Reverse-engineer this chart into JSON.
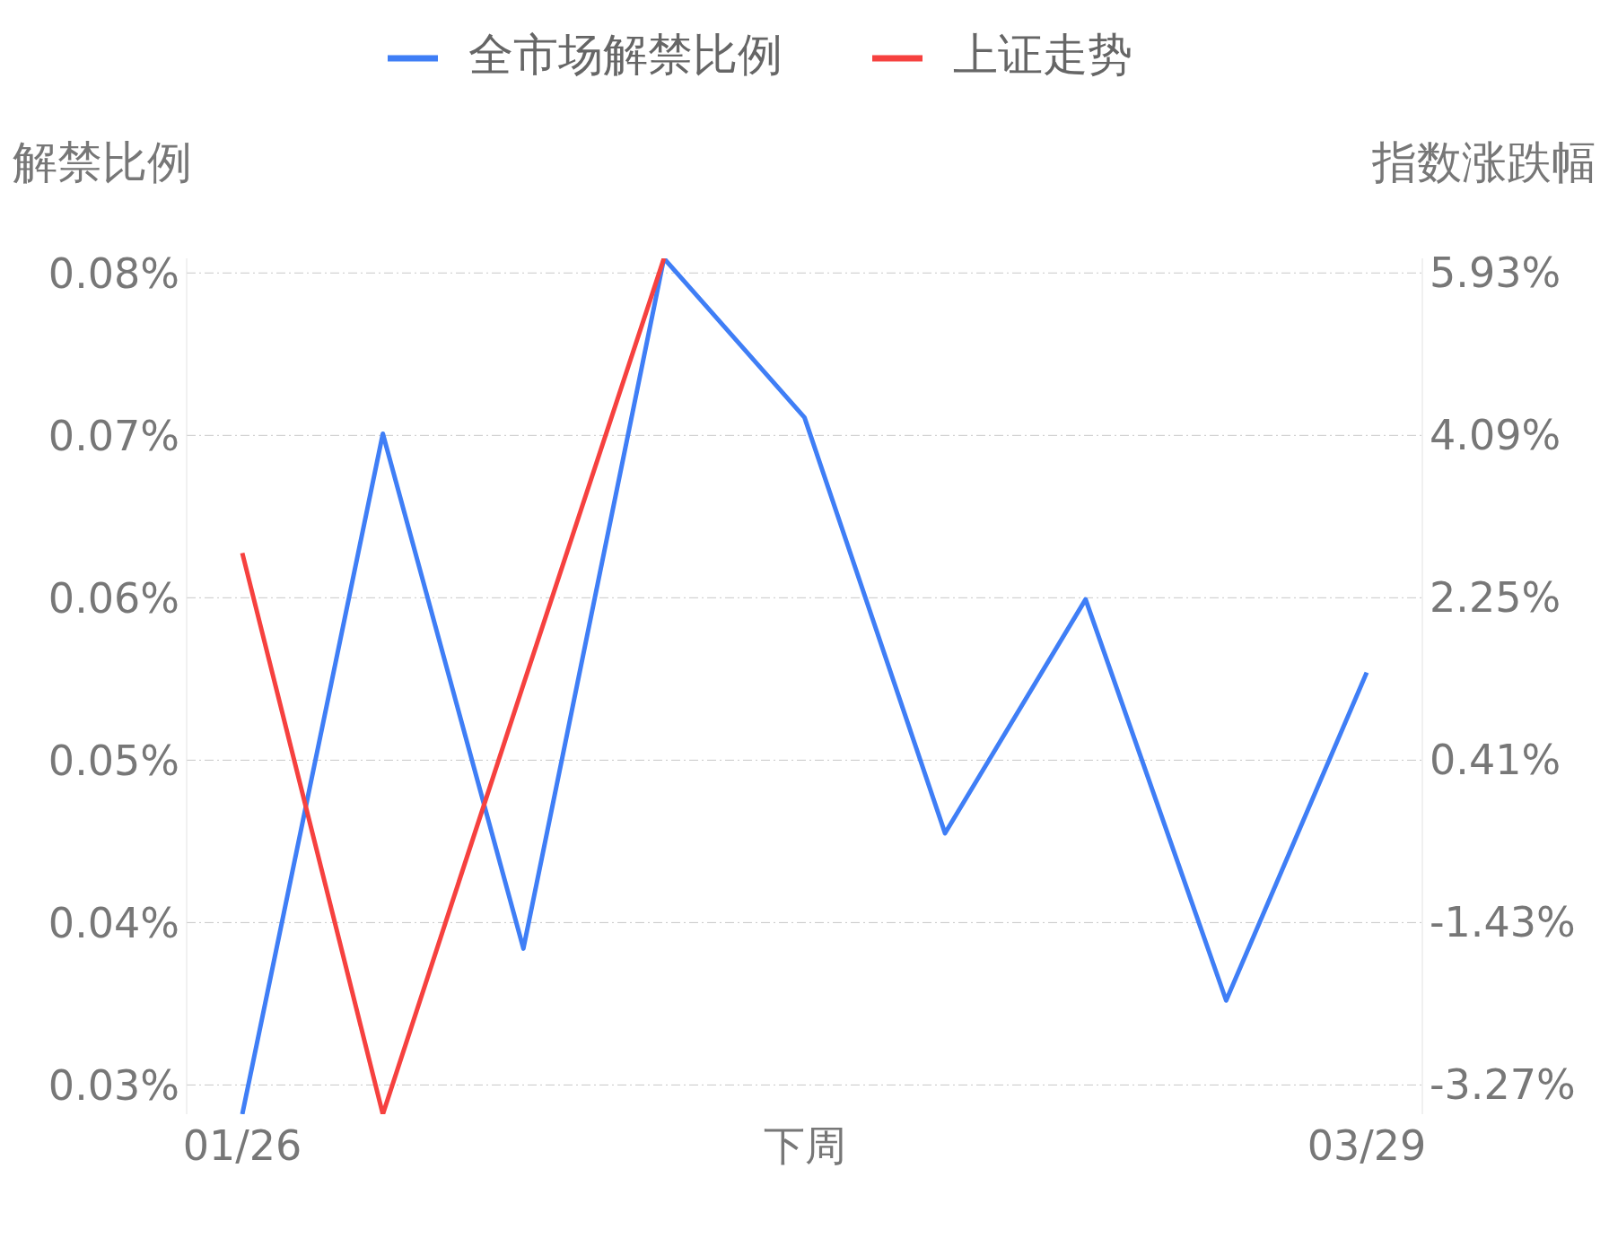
{
  "chart_data": {
    "type": "line",
    "ylabel": "解禁比例",
    "y2label": "指数涨跌幅",
    "categories": [
      "01/26",
      null,
      null,
      null,
      "下周",
      null,
      null,
      null,
      "03/29"
    ],
    "series": [
      {
        "name": "全市场解禁比例",
        "color": "#3f7ef6",
        "values": [
          0.0282,
          0.0701,
          0.0384,
          0.0809,
          0.0711,
          0.0455,
          0.0599,
          0.0352,
          0.0554
        ]
      },
      {
        "name": "上证走势",
        "color": "#f6413f",
        "axis": "y2",
        "values": [
          2.75,
          -3.61,
          1.26,
          6.09,
          null,
          null,
          null,
          null,
          null
        ]
      }
    ],
    "ylim": [
      0.0282,
      0.0809
    ],
    "yticks": [
      {
        "value": 0.03,
        "label": "0.03%"
      },
      {
        "value": 0.04,
        "label": "0.04%"
      },
      {
        "value": 0.05,
        "label": "0.05%"
      },
      {
        "value": 0.06,
        "label": "0.06%"
      },
      {
        "value": 0.07,
        "label": "0.07%"
      },
      {
        "value": 0.08,
        "label": "0.08%"
      }
    ],
    "y2lim": [
      -3.61,
      6.09
    ],
    "y2ticks": [
      {
        "value": -3.27,
        "label": "-3.27%"
      },
      {
        "value": -1.43,
        "label": "-1.43%"
      },
      {
        "value": 0.41,
        "label": "0.41%"
      },
      {
        "value": 2.25,
        "label": "2.25%"
      },
      {
        "value": 4.09,
        "label": "4.09%"
      },
      {
        "value": 5.93,
        "label": "5.93%"
      }
    ],
    "grid": "y",
    "legend": "top",
    "marker": "none",
    "line_style": "solid"
  }
}
